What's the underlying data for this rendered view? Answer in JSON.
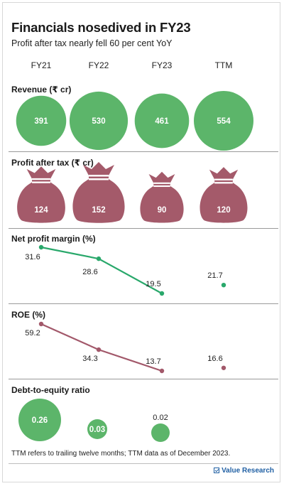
{
  "title": "Financials nosedived in FY23",
  "subtitle": "Profit after tax nearly fell 60 per cent YoY",
  "periods": [
    "FY21",
    "FY22",
    "FY23",
    "TTM"
  ],
  "colors": {
    "green": "#5cb56a",
    "line_green": "#29a86b",
    "maroon": "#a45a6a",
    "line_maroon": "#a2586a"
  },
  "chart_data": [
    {
      "type": "bubble",
      "title": "Revenue (₹ cr)",
      "categories": [
        "FY21",
        "FY22",
        "FY23",
        "TTM"
      ],
      "values": [
        391,
        530,
        461,
        554
      ]
    },
    {
      "type": "pictograph",
      "title": "Profit after tax (₹ cr)",
      "icon": "money-bag-icon",
      "categories": [
        "FY21",
        "FY22",
        "FY23",
        "TTM"
      ],
      "values": [
        124,
        152,
        90,
        120
      ]
    },
    {
      "type": "line",
      "title": "Net profit margin (%)",
      "categories": [
        "FY21",
        "FY22",
        "FY23",
        "TTM"
      ],
      "values": [
        31.6,
        28.6,
        19.5,
        21.7
      ],
      "connected_until_index": 2
    },
    {
      "type": "line",
      "title": "ROE (%)",
      "categories": [
        "FY21",
        "FY22",
        "FY23",
        "TTM"
      ],
      "values": [
        59.2,
        34.3,
        13.7,
        16.6
      ],
      "connected_until_index": 2
    },
    {
      "type": "bubble",
      "title": "Debt-to-equity ratio",
      "categories": [
        "FY21",
        "FY22",
        "FY23",
        "TTM"
      ],
      "values": [
        0.26,
        0.03,
        0.02,
        null
      ],
      "value_labels": [
        "0.26",
        "0.03",
        "0.02",
        ""
      ]
    }
  ],
  "footnote": "TTM refers to trailing twelve months; TTM data as of December 2023.",
  "brand": "Value Research"
}
